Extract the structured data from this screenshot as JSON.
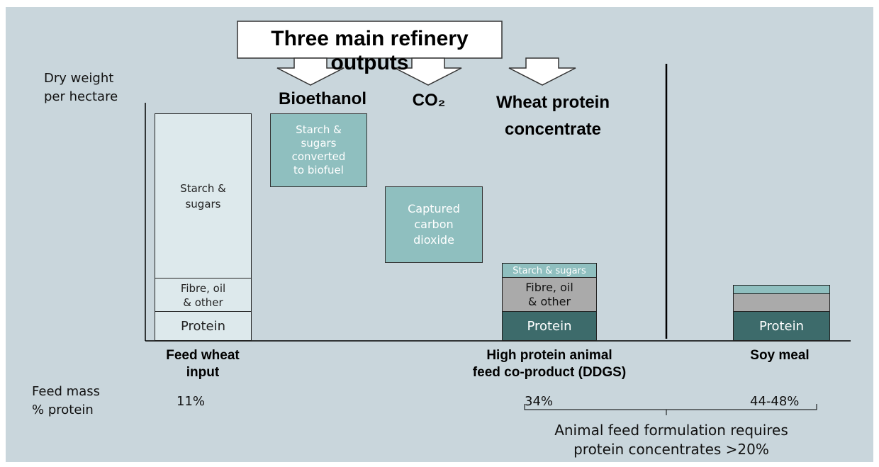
{
  "banner": "Three main refinery outputs",
  "y_axis_label": [
    "Dry weight",
    "per hectare"
  ],
  "outputs": {
    "bioethanol": "Bioethanol",
    "co2": "CO₂",
    "wheat_protein": [
      "Wheat protein",
      "concentrate"
    ]
  },
  "boxes": {
    "biofuel": [
      "Starch &",
      "sugars",
      "converted",
      "to biofuel"
    ],
    "carbon": [
      "Captured",
      "carbon",
      "dioxide"
    ]
  },
  "wheat_column": {
    "starch": [
      "Starch &",
      "sugars"
    ],
    "fibre": [
      "Fibre, oil",
      "& other"
    ],
    "protein": "Protein"
  },
  "ddgs_column": {
    "starch": "Starch & sugars",
    "fibre": [
      "Fibre, oil",
      "& other"
    ],
    "protein": "Protein"
  },
  "soy_column": {
    "protein": "Protein"
  },
  "x_labels": {
    "wheat": [
      "Feed wheat",
      "input"
    ],
    "ddgs": [
      "High protein animal",
      "feed co-product (DDGS)"
    ],
    "soy": "Soy meal"
  },
  "protein_label": [
    "Feed mass",
    "% protein"
  ],
  "protein_values": {
    "wheat": "11%",
    "ddgs": "34%",
    "soy": "44-48%"
  },
  "note": [
    "Animal feed formulation requires",
    "protein concentrates >20%"
  ]
}
